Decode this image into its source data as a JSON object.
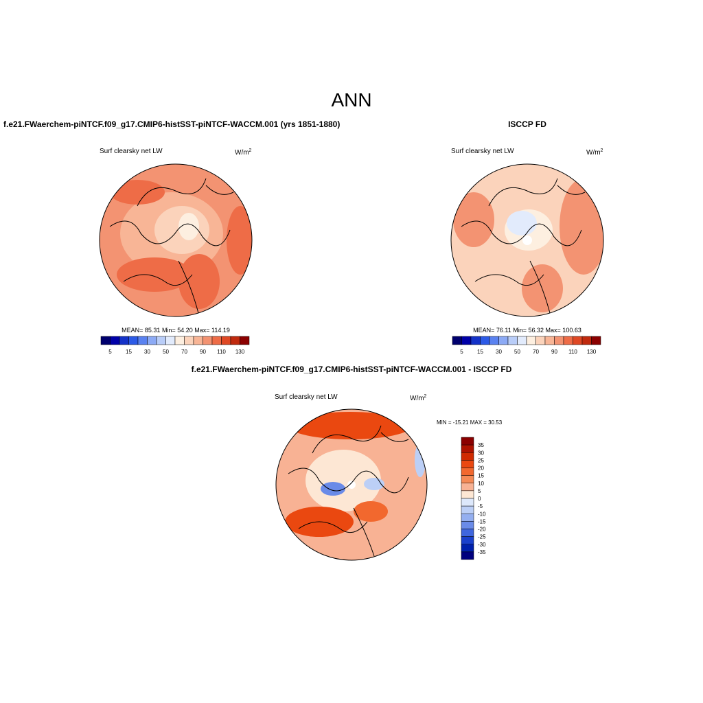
{
  "title": "ANN",
  "panels": [
    {
      "heading": "f.e21.FWaerchem-piNTCF.f09_g17.CMIP6-histSST-piNTCF-WACCM.001 (yrs 1851-1880)",
      "variable": "Surf clearsky net LW",
      "units": "W/m",
      "units_sup": "2",
      "stats": "MEAN=  85.31  Min=  54.20  Max= 114.19"
    },
    {
      "heading": "ISCCP FD",
      "variable": "Surf clearsky net LW",
      "units": "W/m",
      "units_sup": "2",
      "stats": "MEAN=  76.11  Min=  56.32  Max= 100.63"
    }
  ],
  "colorbar": {
    "labels": [
      "5",
      "15",
      "30",
      "50",
      "70",
      "90",
      "110",
      "130"
    ],
    "colors": [
      "#00006e",
      "#0000a8",
      "#1432c8",
      "#2c5ae6",
      "#5a82f0",
      "#8caaf5",
      "#b9cdf8",
      "#e2ebfc",
      "#fdefe0",
      "#fbd3bb",
      "#f8b596",
      "#f39372",
      "#ee6c47",
      "#df4824",
      "#c02a0e",
      "#8b0000"
    ]
  },
  "difference": {
    "heading": "f.e21.FWaerchem-piNTCF.f09_g17.CMIP6-histSST-piNTCF-WACCM.001 - ISCCP FD",
    "variable": "Surf clearsky net LW",
    "units": "W/m",
    "units_sup": "2",
    "stats": "MIN = -15.21 MAX =  30.53",
    "colorbar": {
      "labels": [
        "35",
        "30",
        "25",
        "20",
        "15",
        "10",
        "5",
        "0",
        "-5",
        "-10",
        "-15",
        "-20",
        "-25",
        "-30",
        "-35"
      ],
      "colors": [
        "#8b0000",
        "#ae1200",
        "#d02a00",
        "#ea4810",
        "#f2682e",
        "#f58a56",
        "#f8b294",
        "#fde7d4",
        "#dde8fb",
        "#bccff6",
        "#94aff0",
        "#6a8be8",
        "#3f66de",
        "#1a40cc",
        "#0020ac",
        "#00007e"
      ]
    }
  }
}
